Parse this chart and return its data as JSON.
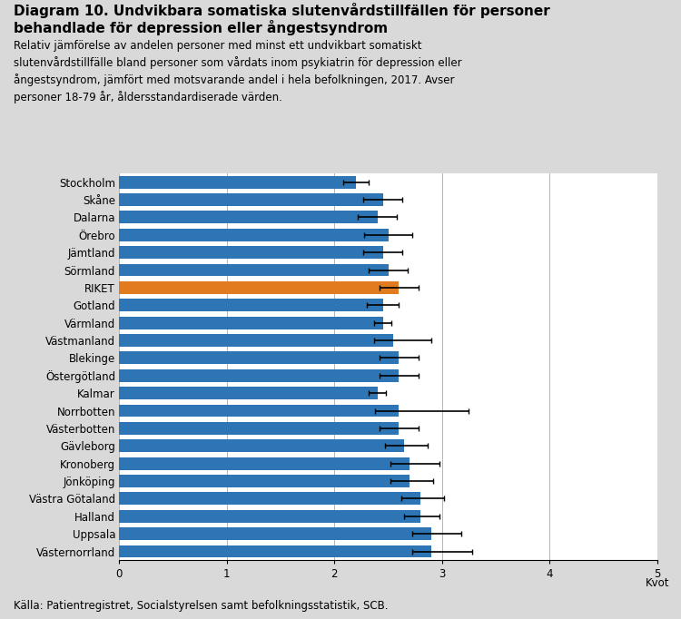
{
  "title_line1": "Diagram 10. Undvikbara somatiska slutenvårdstillfällen för personer",
  "title_line2": "behandlade för depression eller ångestsyndrom",
  "subtitle": "Relativ jämförelse av andelen personer med minst ett undvikbart somatiskt\nslutenvårdstillfälle bland personer som vårdats inom psykiatrin för depression eller\nångestsyndrom, jämfört med motsvarande andel i hela befolkningen, 2017. Avser\npersoner 18-79 år, åldersstandardiserade värden.",
  "xlabel": "Kvot",
  "footer": "Källa: Patientregistret, Socialstyrelsen samt befolkningsstatistik, SCB.",
  "categories": [
    "Stockholm",
    "Skåne",
    "Dalarna",
    "Örebro",
    "Jämtland",
    "Sörmland",
    "RIKET",
    "Gotland",
    "Värmland",
    "Västmanland",
    "Blekinge",
    "Östergötland",
    "Kalmar",
    "Norrbotten",
    "Västerbotten",
    "Gävleborg",
    "Kronoberg",
    "Jönköping",
    "Västra Götaland",
    "Halland",
    "Uppsala",
    "Västernorrland"
  ],
  "values": [
    2.2,
    2.45,
    2.4,
    2.5,
    2.45,
    2.5,
    2.6,
    2.45,
    2.45,
    2.55,
    2.6,
    2.6,
    2.4,
    2.6,
    2.6,
    2.65,
    2.7,
    2.7,
    2.8,
    2.8,
    2.9,
    2.9
  ],
  "errors_low": [
    0.12,
    0.18,
    0.18,
    0.22,
    0.18,
    0.18,
    0.18,
    0.15,
    0.08,
    0.18,
    0.18,
    0.18,
    0.08,
    0.22,
    0.18,
    0.18,
    0.18,
    0.18,
    0.18,
    0.15,
    0.18,
    0.18
  ],
  "errors_high": [
    0.12,
    0.18,
    0.18,
    0.22,
    0.18,
    0.18,
    0.18,
    0.15,
    0.08,
    0.35,
    0.18,
    0.18,
    0.08,
    0.65,
    0.18,
    0.22,
    0.28,
    0.22,
    0.22,
    0.18,
    0.28,
    0.38
  ],
  "bar_colors": [
    "#2E75B6",
    "#2E75B6",
    "#2E75B6",
    "#2E75B6",
    "#2E75B6",
    "#2E75B6",
    "#E07B20",
    "#2E75B6",
    "#2E75B6",
    "#2E75B6",
    "#2E75B6",
    "#2E75B6",
    "#2E75B6",
    "#2E75B6",
    "#2E75B6",
    "#2E75B6",
    "#2E75B6",
    "#2E75B6",
    "#2E75B6",
    "#2E75B6",
    "#2E75B6",
    "#2E75B6"
  ],
  "xlim": [
    0,
    5
  ],
  "xticks": [
    0,
    1,
    2,
    3,
    4,
    5
  ],
  "background_color": "#D9D9D9",
  "plot_background": "#FFFFFF",
  "title_fontsize": 11,
  "subtitle_fontsize": 8.5,
  "tick_fontsize": 8.5,
  "xlabel_fontsize": 8.5
}
